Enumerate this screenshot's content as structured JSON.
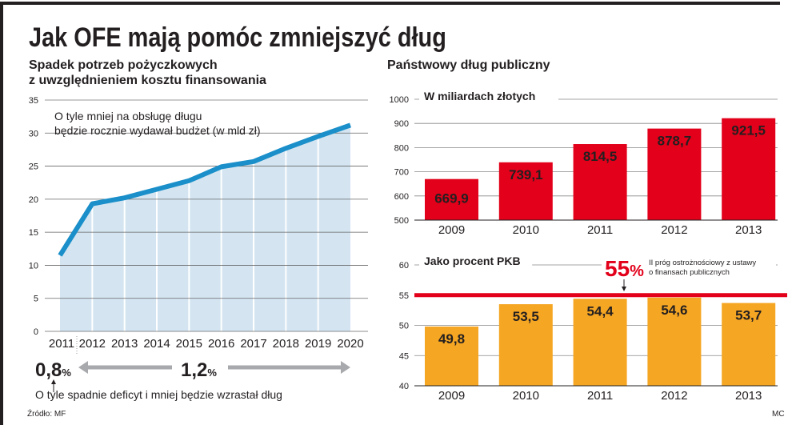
{
  "title": "Jak OFE mają pomóc zmniejszyć dług",
  "source": "Źródło: MF",
  "credit": "MC",
  "colors": {
    "line": "#1a8fc9",
    "area": "#d4e5f1",
    "red": "#e2001a",
    "orange": "#f5a623",
    "text": "#231f20"
  },
  "chart_data": [
    {
      "type": "area",
      "title": "Spadek potrzeb pożyczkowych z uwzględnieniem kosztu finansowania",
      "title_lines": [
        "Spadek potrzeb pożyczkowych",
        "z uwzględnieniem kosztu finansowania"
      ],
      "annotation_lines": [
        "O tyle mniej na obsługę długu",
        "będzie rocznie wydawał budżet (w mld zł)"
      ],
      "x": [
        "2011",
        "2012",
        "2013",
        "2014",
        "2015",
        "2016",
        "2017",
        "2018",
        "2019",
        "2020"
      ],
      "values": [
        11.5,
        19.3,
        20.2,
        21.5,
        22.8,
        24.9,
        25.7,
        27.7,
        29.5,
        31.2
      ],
      "ylim": [
        0,
        35
      ],
      "yticks": [
        0,
        5,
        10,
        15,
        20,
        25,
        30,
        35
      ],
      "grid": true,
      "footnote": {
        "first_value": "0,8",
        "rest_value": "1,2",
        "unit": "%",
        "text": "O tyle spadnie deficyt i mniej będzie wzrastał dług"
      }
    },
    {
      "type": "bar",
      "section_title": "Państwowy dług publiczny",
      "title": "W miliardach złotych",
      "categories": [
        "2009",
        "2010",
        "2011",
        "2012",
        "2013"
      ],
      "values": [
        669.9,
        739.1,
        814.5,
        878.7,
        921.5
      ],
      "labels": [
        "669,9",
        "739,1",
        "814,5",
        "878,7",
        "921,5"
      ],
      "ylim": [
        500,
        1000
      ],
      "yticks": [
        500,
        600,
        700,
        800,
        900,
        1000
      ],
      "grid": true
    },
    {
      "type": "bar",
      "title": "Jako procent PKB",
      "categories": [
        "2009",
        "2010",
        "2011",
        "2012",
        "2013"
      ],
      "values": [
        49.8,
        53.5,
        54.4,
        54.6,
        53.7
      ],
      "labels": [
        "49,8",
        "53,5",
        "54,4",
        "54,6",
        "53,7"
      ],
      "ylim": [
        40,
        60
      ],
      "yticks": [
        40,
        45,
        50,
        55,
        60
      ],
      "grid": true,
      "threshold": {
        "value": 55,
        "label_big": "55",
        "label_unit": "%",
        "label_lines": [
          "II próg ostrożnościowy z ustawy",
          "o finansach publicznych"
        ]
      }
    }
  ]
}
